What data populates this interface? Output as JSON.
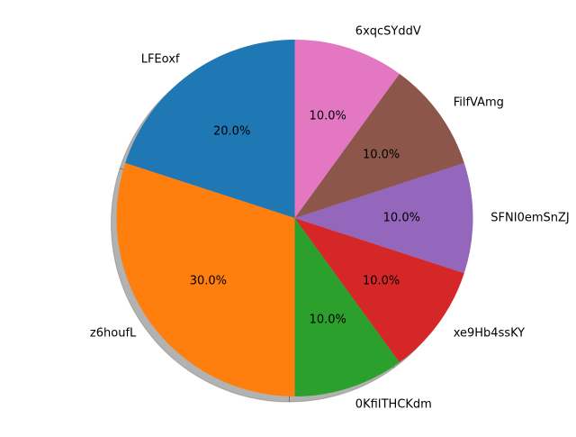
{
  "chart_data": {
    "type": "pie",
    "categories": [
      "LFEoxf",
      "z6houfL",
      "0KfiITHCKdm",
      "xe9Hb4ssKY",
      "SFNI0emSnZJ",
      "FilfVAmg",
      "6xqcSYddV"
    ],
    "values": [
      20,
      30,
      10,
      10,
      10,
      10,
      10
    ],
    "percent_labels": [
      "20.0%",
      "30.0%",
      "10.0%",
      "10.0%",
      "10.0%",
      "10.0%",
      "10.0%"
    ],
    "colors": [
      "#1f77b4",
      "#ff7f0e",
      "#2ca02c",
      "#d62728",
      "#9467bd",
      "#8c564b",
      "#e377c2"
    ],
    "start_angle_deg": 90,
    "direction": "counterclockwise",
    "shadow": true,
    "legend": "none"
  }
}
